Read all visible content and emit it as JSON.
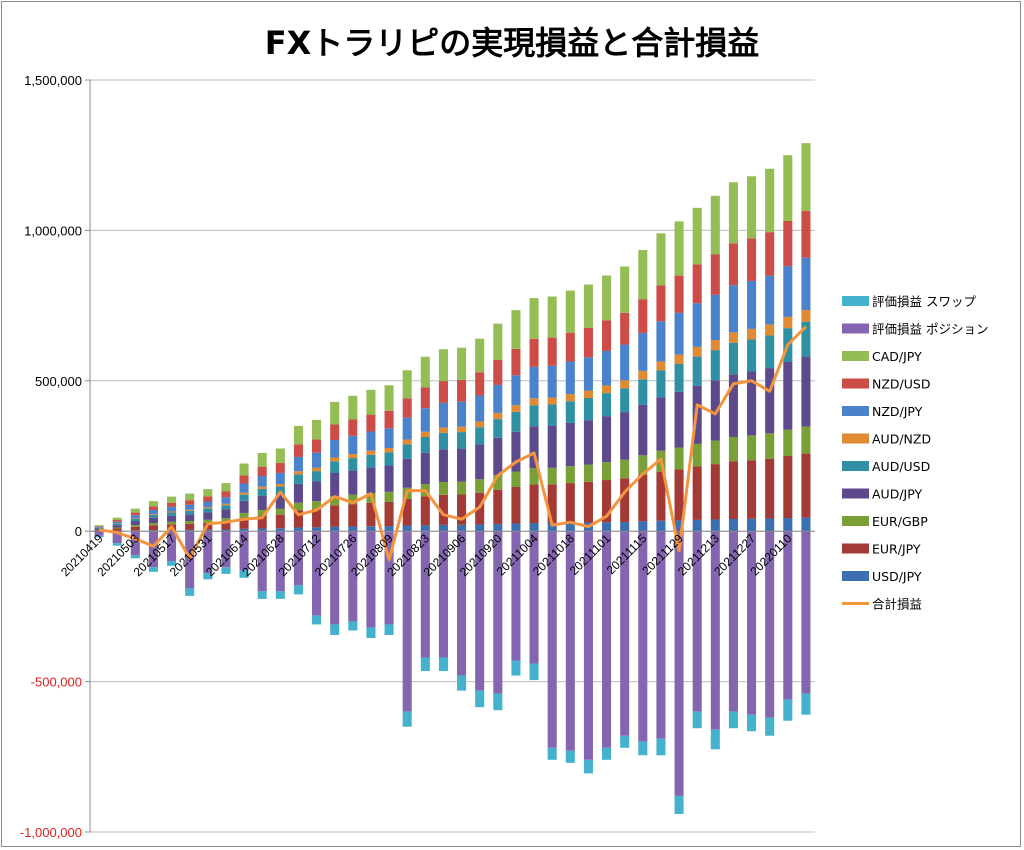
{
  "chart_data": {
    "type": "bar",
    "title": "FXトラリピの実現損益と合計損益",
    "ylim": [
      -1000000,
      1500000
    ],
    "y_ticks": [
      {
        "value": 1500000,
        "label": "1,500,000",
        "color": "#000000"
      },
      {
        "value": 1000000,
        "label": "1,000,000",
        "color": "#000000"
      },
      {
        "value": 500000,
        "label": "500,000",
        "color": "#000000"
      },
      {
        "value": 0,
        "label": "0",
        "color": "#000000"
      },
      {
        "value": -500000,
        "label": "-500,000",
        "color": "#e02020"
      },
      {
        "value": -1000000,
        "label": "-1,000,000",
        "color": "#e02020"
      }
    ],
    "x_tick_labels": [
      "20210419",
      "20210503",
      "20210517",
      "20210531",
      "20210614",
      "20210628",
      "20210712",
      "20210726",
      "20210809",
      "20210823",
      "20210906",
      "20210920",
      "20211004",
      "20211018",
      "20211101",
      "20211115",
      "20211129",
      "20211213",
      "20211227",
      "20220110"
    ],
    "grid": "horizontal",
    "legend_position": "right",
    "realized_series": [
      {
        "name": "USD/JPY",
        "color": "#3a6fb2",
        "share": 0.035
      },
      {
        "name": "EUR/JPY",
        "color": "#a33a36",
        "share": 0.165
      },
      {
        "name": "EUR/GBP",
        "color": "#78a036",
        "share": 0.07
      },
      {
        "name": "AUD/JPY",
        "color": "#5d4a8c",
        "share": 0.18
      },
      {
        "name": "AUD/USD",
        "color": "#2f8fa3",
        "share": 0.09
      },
      {
        "name": "AUD/NZD",
        "color": "#e08a34",
        "share": 0.03
      },
      {
        "name": "NZD/JPY",
        "color": "#4a82cc",
        "share": 0.135
      },
      {
        "name": "NZD/USD",
        "color": "#cc4c48",
        "share": 0.12
      },
      {
        "name": "CAD/JPY",
        "color": "#94bd54",
        "share": 0.175
      }
    ],
    "unrealized_series": [
      {
        "name": "評価損益 ポジション",
        "color": "#8466b0"
      },
      {
        "name": "評価損益 スワップ",
        "color": "#44b2cc"
      }
    ],
    "total_line": {
      "name": "合計損益",
      "color": "#f4943e"
    },
    "realized_totals": [
      20000,
      45000,
      75000,
      100000,
      115000,
      125000,
      140000,
      160000,
      225000,
      260000,
      275000,
      350000,
      370000,
      430000,
      450000,
      470000,
      485000,
      535000,
      580000,
      605000,
      610000,
      640000,
      690000,
      735000,
      775000,
      780000,
      800000,
      820000,
      850000,
      880000,
      935000,
      990000,
      1030000,
      1075000,
      1115000,
      1160000,
      1180000,
      1205000,
      1250000,
      1290000
    ],
    "unrealized_position": [
      -15000,
      -40000,
      -80000,
      -120000,
      -100000,
      -190000,
      -140000,
      -120000,
      -130000,
      -200000,
      -200000,
      -180000,
      -280000,
      -310000,
      -300000,
      -320000,
      -310000,
      -600000,
      -420000,
      -420000,
      -480000,
      -530000,
      -540000,
      -430000,
      -440000,
      -720000,
      -730000,
      -760000,
      -720000,
      -680000,
      -700000,
      -690000,
      -880000,
      -600000,
      -660000,
      -600000,
      -610000,
      -620000,
      -560000,
      -540000
    ],
    "unrealized_swap": [
      -5000,
      -8000,
      -10000,
      -15000,
      -15000,
      -25000,
      -20000,
      -22000,
      -25000,
      -25000,
      -25000,
      -30000,
      -30000,
      -35000,
      -30000,
      -35000,
      -35000,
      -50000,
      -45000,
      -45000,
      -50000,
      -55000,
      -55000,
      -50000,
      -55000,
      -40000,
      -40000,
      -45000,
      -40000,
      -40000,
      -45000,
      -55000,
      -60000,
      -55000,
      -65000,
      -55000,
      -55000,
      -60000,
      -70000,
      -70000
    ],
    "total": [
      5000,
      -5000,
      -25000,
      -50000,
      15000,
      -90000,
      25000,
      30000,
      40000,
      45000,
      130000,
      55000,
      70000,
      115000,
      95000,
      125000,
      -95000,
      135000,
      135000,
      55000,
      40000,
      80000,
      185000,
      230000,
      260000,
      20000,
      30000,
      15000,
      50000,
      130000,
      190000,
      240000,
      -65000,
      420000,
      390000,
      490000,
      500000,
      465000,
      620000,
      680000
    ]
  }
}
